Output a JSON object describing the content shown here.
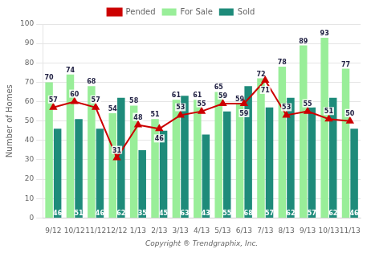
{
  "chart_data": {
    "type": "bar",
    "xlabel": "Copyright ® Trendgraphix, Inc.",
    "ylabel": "Number of Homes",
    "categories": [
      "9/12",
      "10/12",
      "11/12",
      "12/12",
      "1/13",
      "2/13",
      "3/13",
      "4/13",
      "5/13",
      "6/13",
      "7/13",
      "8/13",
      "9/13",
      "10/13",
      "11/13"
    ],
    "series": [
      {
        "name": "For Sale",
        "type": "bar",
        "color": "#99EE99",
        "values": [
          70,
          74,
          68,
          54,
          58,
          51,
          61,
          61,
          65,
          59,
          72,
          78,
          89,
          93,
          77
        ]
      },
      {
        "name": "Sold",
        "type": "bar",
        "color": "#1E8B7A",
        "values": [
          46,
          51,
          46,
          62,
          35,
          45,
          63,
          43,
          55,
          68,
          57,
          62,
          57,
          62,
          46
        ]
      },
      {
        "name": "Pended",
        "type": "line",
        "color": "#CC0000",
        "marker": "triangle",
        "values": [
          57,
          60,
          57,
          31,
          48,
          46,
          53,
          55,
          59,
          59,
          71,
          53,
          55,
          51,
          50
        ]
      }
    ],
    "ylim": [
      0,
      100
    ],
    "yticks": [
      0,
      10,
      20,
      30,
      40,
      50,
      60,
      70,
      80,
      90,
      100
    ],
    "grid": true,
    "legend": "top",
    "data_labels": true
  }
}
